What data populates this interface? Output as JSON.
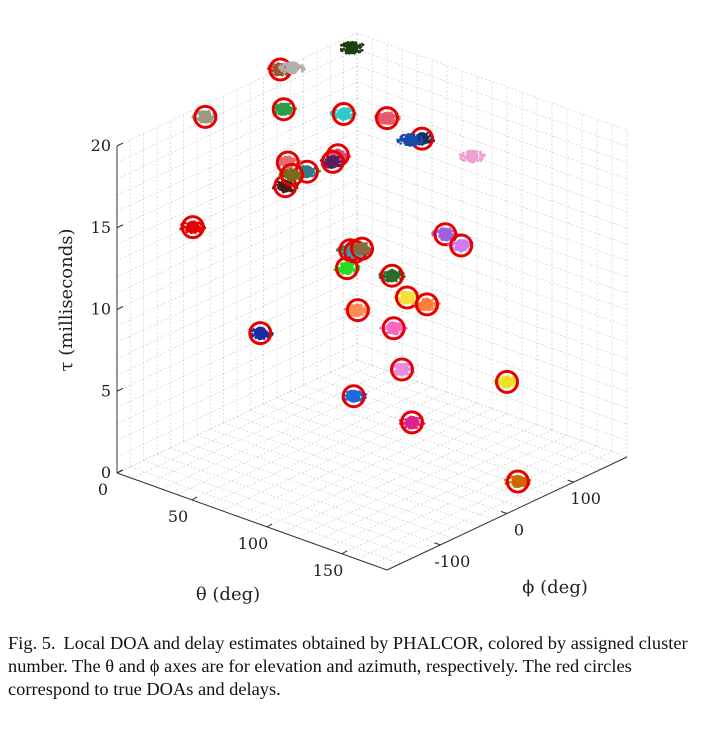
{
  "chart_data": {
    "type": "scatter",
    "projection": "3d",
    "axes": {
      "theta": {
        "label": "θ (deg)",
        "range": [
          0,
          180
        ],
        "ticks": [
          0,
          50,
          100,
          150
        ]
      },
      "phi": {
        "label": "ϕ (deg)",
        "range": [
          -180,
          180
        ],
        "ticks": [
          -100,
          0,
          100
        ]
      },
      "tau": {
        "label": "τ (milliseconds)",
        "range": [
          0,
          20
        ],
        "ticks": [
          0,
          5,
          10,
          15,
          20
        ]
      }
    },
    "grid": true,
    "markers": {
      "true_doa": {
        "shape": "circle",
        "color": "#e60000"
      }
    },
    "clusters": [
      {
        "theta": 10,
        "phi": -70,
        "tau": 20.0,
        "color": "#9a9a82",
        "circle": true
      },
      {
        "theta": 20,
        "phi": 20,
        "tau": 21.5,
        "color": "#a0522d",
        "circle": true
      },
      {
        "theta": 10,
        "phi": 60,
        "tau": 20.5,
        "color": "#b0b0b0",
        "circle": false
      },
      {
        "theta": 10,
        "phi": 150,
        "tau": 20.0,
        "color": "#1f3d12",
        "circle": false
      },
      {
        "theta": 40,
        "phi": 15,
        "tau": 16.0,
        "color": "#2f7a8a",
        "circle": true
      },
      {
        "theta": 45,
        "phi": 50,
        "tau": 16.5,
        "color": "#d4547a",
        "circle": true
      },
      {
        "theta": 45,
        "phi": -25,
        "tau": 17.5,
        "color": "#e86a6a",
        "circle": true
      },
      {
        "theta": 60,
        "phi": 90,
        "tau": 18.5,
        "color": "#e8596d",
        "circle": true
      },
      {
        "theta": 70,
        "phi": 120,
        "tau": 17.0,
        "color": "#1a2c5b",
        "circle": true
      },
      {
        "theta": 55,
        "phi": 20,
        "tau": 17.0,
        "color": "#5a1d5c",
        "circle": true
      },
      {
        "theta": 40,
        "phi": -20,
        "tau": 20.5,
        "color": "#2d9c4a",
        "circle": true
      },
      {
        "theta": 50,
        "phi": -40,
        "tau": 16.5,
        "color": "#4a1a1a",
        "circle": true
      },
      {
        "theta": 50,
        "phi": -30,
        "tau": 17.0,
        "color": "#7a6a1a",
        "circle": true
      },
      {
        "theta": 15,
        "phi": -100,
        "tau": 14.0,
        "color": "#e60000",
        "circle": true
      },
      {
        "theta": 60,
        "phi": 25,
        "tau": 20.0,
        "color": "#2ec9c9",
        "circle": true
      },
      {
        "theta": 80,
        "phi": 80,
        "tau": 18.0,
        "color": "#1a4aa8",
        "circle": false
      },
      {
        "theta": 90,
        "phi": 150,
        "tau": 16.0,
        "color": "#f0a0d0",
        "circle": false
      },
      {
        "theta": 80,
        "phi": -10,
        "tau": 13.0,
        "color": "#2a8a4a",
        "circle": true
      },
      {
        "theta": 80,
        "phi": -15,
        "tau": 12.0,
        "color": "#22dd22",
        "circle": true
      },
      {
        "theta": 70,
        "phi": 20,
        "tau": 12.0,
        "color": "#3aa0d0",
        "circle": true
      },
      {
        "theta": 70,
        "phi": 30,
        "tau": 12.0,
        "color": "#8a6a3a",
        "circle": true
      },
      {
        "theta": 90,
        "phi": 30,
        "tau": 11.0,
        "color": "#2a6a2a",
        "circle": true
      },
      {
        "theta": 100,
        "phi": 30,
        "tau": 10.0,
        "color": "#f5e03a",
        "circle": true
      },
      {
        "theta": 85,
        "phi": -10,
        "tau": 9.5,
        "color": "#ff8a55",
        "circle": true
      },
      {
        "theta": 90,
        "phi": 110,
        "tau": 12.0,
        "color": "#a060e0",
        "circle": true
      },
      {
        "theta": 105,
        "phi": 100,
        "tau": 12.0,
        "color": "#cf7aee",
        "circle": true
      },
      {
        "theta": 100,
        "phi": 60,
        "tau": 9.0,
        "color": "#ff7f3a",
        "circle": true
      },
      {
        "theta": 60,
        "phi": -100,
        "tau": 9.0,
        "color": "#1a2aa0",
        "circle": true
      },
      {
        "theta": 110,
        "phi": 0,
        "tau": 6.5,
        "color": "#ee88dd",
        "circle": true
      },
      {
        "theta": 100,
        "phi": 10,
        "tau": 8.5,
        "color": "#ff66c4",
        "circle": true
      },
      {
        "theta": 100,
        "phi": -50,
        "tau": 5.5,
        "color": "#1e6ad6",
        "circle": true
      },
      {
        "theta": 130,
        "phi": -30,
        "tau": 4.5,
        "color": "#dd2288",
        "circle": true
      },
      {
        "theta": 140,
        "phi": 90,
        "tau": 5.0,
        "color": "#f0e020",
        "circle": true
      },
      {
        "theta": 165,
        "phi": 50,
        "tau": 0.5,
        "color": "#cc6a00",
        "circle": true
      }
    ]
  },
  "caption": {
    "label": "Fig. 5.",
    "text": "Local DOA and delay estimates obtained by PHALCOR, colored by assigned cluster number. The θ and ϕ axes are for elevation and azimuth, respectively. The red circles correspond to true DOAs and delays."
  }
}
